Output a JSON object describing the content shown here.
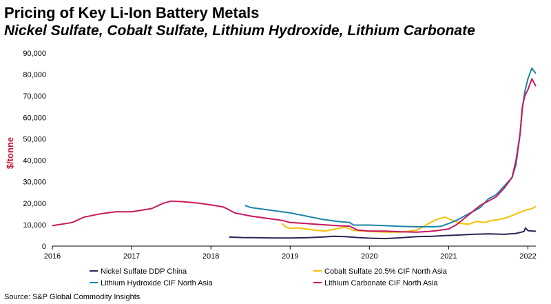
{
  "chart_data": {
    "type": "line",
    "title": "Pricing of Key Li-Ion Battery Metals",
    "subtitle": "Nickel Sulfate, Cobalt Sulfate, Lithium Hydroxide, Lithium Carbonate",
    "ylabel": "$/tonne",
    "xlabel": "",
    "xlim": [
      2016,
      2022.1
    ],
    "ylim": [
      0,
      90000
    ],
    "x_ticks": [
      "2016",
      "2017",
      "2018",
      "2019",
      "2020",
      "2021",
      "2022"
    ],
    "y_ticks": [
      "0",
      "10,000",
      "20,000",
      "30,000",
      "40,000",
      "50,000",
      "60,000",
      "70,000",
      "80,000",
      "90,000"
    ],
    "grid": false,
    "legend_position": "bottom",
    "source": "Source: S&P Global Commodity Insights",
    "series": [
      {
        "name": "Nickel Sulfate DDP China",
        "color": "#2d2452",
        "x": [
          2018.23,
          2018.4,
          2018.6,
          2018.8,
          2019.0,
          2019.2,
          2019.4,
          2019.55,
          2019.7,
          2019.85,
          2020.0,
          2020.2,
          2020.4,
          2020.6,
          2020.8,
          2020.95,
          2021.1,
          2021.3,
          2021.5,
          2021.7,
          2021.85,
          2021.95,
          2021.97,
          2022.0,
          2022.1
        ],
        "values": [
          4200,
          4000,
          3900,
          3800,
          3800,
          3900,
          4200,
          4600,
          4400,
          4000,
          3700,
          3500,
          3900,
          4400,
          4600,
          4900,
          5100,
          5500,
          5700,
          5500,
          5900,
          6800,
          8500,
          7200,
          6900
        ]
      },
      {
        "name": "Cobalt Sulfate 20.5% CIF North Asia",
        "color": "#f6c000",
        "x": [
          2018.9,
          2018.95,
          2019.0,
          2019.1,
          2019.3,
          2019.45,
          2019.6,
          2019.7,
          2019.8,
          2020.0,
          2020.2,
          2020.4,
          2020.6,
          2020.75,
          2020.85,
          2020.95,
          2021.05,
          2021.15,
          2021.25,
          2021.35,
          2021.45,
          2021.55,
          2021.65,
          2021.75,
          2021.85,
          2021.95,
          2022.05,
          2022.1
        ],
        "values": [
          10500,
          8800,
          8300,
          8500,
          7500,
          7000,
          8200,
          8800,
          7300,
          6800,
          6500,
          6500,
          7500,
          10500,
          12500,
          13500,
          12000,
          10500,
          10200,
          11500,
          11000,
          12000,
          12500,
          13500,
          15000,
          16500,
          17500,
          18500
        ]
      },
      {
        "name": "Lithium Hydroxide CIF North Asia",
        "color": "#1a84a8",
        "x": [
          2018.43,
          2018.5,
          2018.7,
          2018.9,
          2019.0,
          2019.2,
          2019.4,
          2019.6,
          2019.75,
          2019.8,
          2020.0,
          2020.2,
          2020.4,
          2020.6,
          2020.8,
          2020.9,
          2021.0,
          2021.1,
          2021.2,
          2021.3,
          2021.4,
          2021.5,
          2021.6,
          2021.7,
          2021.8,
          2021.85,
          2021.9,
          2021.93,
          2021.96,
          2022.0,
          2022.05,
          2022.1
        ],
        "values": [
          19000,
          18000,
          17000,
          16000,
          15500,
          14000,
          12500,
          11500,
          11000,
          9800,
          9800,
          9500,
          9200,
          9000,
          9000,
          9200,
          10500,
          12000,
          14000,
          16000,
          18000,
          22000,
          24000,
          28000,
          32000,
          38000,
          52000,
          64000,
          72000,
          78000,
          83000,
          80500
        ]
      },
      {
        "name": "Lithium Carbonate CIF North Asia",
        "color": "#c8175d",
        "x": [
          2016.0,
          2016.25,
          2016.4,
          2016.6,
          2016.8,
          2017.0,
          2017.25,
          2017.4,
          2017.5,
          2017.65,
          2017.85,
          2018.0,
          2018.15,
          2018.2,
          2018.3,
          2018.5,
          2018.7,
          2018.9,
          2019.0,
          2019.2,
          2019.4,
          2019.6,
          2019.75,
          2019.85,
          2020.0,
          2020.2,
          2020.4,
          2020.6,
          2020.75,
          2020.85,
          2021.0,
          2021.1,
          2021.2,
          2021.3,
          2021.4,
          2021.5,
          2021.6,
          2021.7,
          2021.8,
          2021.85,
          2021.9,
          2021.93,
          2021.96,
          2022.0,
          2022.05,
          2022.1
        ],
        "values": [
          9500,
          11000,
          13500,
          15000,
          16000,
          16000,
          17500,
          20000,
          21000,
          20700,
          20000,
          19200,
          18300,
          17500,
          15500,
          14000,
          13000,
          12000,
          11000,
          10500,
          10000,
          9500,
          9300,
          7500,
          7000,
          7000,
          6700,
          6500,
          6800,
          7200,
          8000,
          10000,
          13000,
          16000,
          19000,
          21000,
          23000,
          27000,
          32000,
          40000,
          52000,
          65000,
          70000,
          73000,
          78000,
          74500
        ]
      }
    ]
  }
}
